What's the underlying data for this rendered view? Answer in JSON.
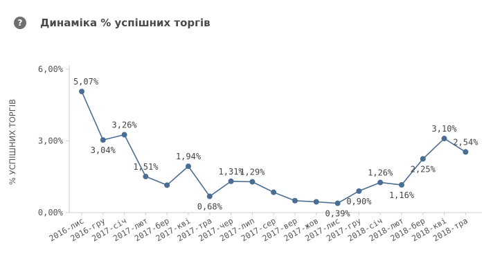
{
  "header": {
    "icon": "help-icon",
    "title": "Динаміка % успішних торгів"
  },
  "chart_data": {
    "type": "line",
    "title": "Динаміка % успішних торгів",
    "xlabel": "",
    "ylabel": "% УСПІШНИХ ТОРГІВ",
    "categories": [
      "2016-лис",
      "2016-гру",
      "2017-січ",
      "2017-лют",
      "2017-бер",
      "2017-кві",
      "2017-тра",
      "2017-чер",
      "2017-лип",
      "2017-сер",
      "2017-вер",
      "2017-жов",
      "2017-лис",
      "2017-гру",
      "2018-січ",
      "2018-лют",
      "2018-бер",
      "2018-кві",
      "2018-тра"
    ],
    "values": [
      5.07,
      3.04,
      3.26,
      1.51,
      1.15,
      1.94,
      0.68,
      1.31,
      1.29,
      0.85,
      0.5,
      0.45,
      0.39,
      0.9,
      1.26,
      1.16,
      2.25,
      3.1,
      2.54
    ],
    "data_labels": [
      "5,07%",
      "3,04%",
      "3,26%",
      "1,51%",
      "",
      "1,94%",
      "0,68%",
      "1,31%",
      "1,29%",
      "",
      "",
      "",
      "0,39%",
      "0,90%",
      "1,26%",
      "1,16%",
      "2,25%",
      "3,10%",
      "2,54%"
    ],
    "yticks": [
      "0,00%",
      "3,00%",
      "6,00%"
    ],
    "ytick_values": [
      0,
      3,
      6
    ],
    "ylim": [
      0,
      6
    ],
    "color": "#4a6d94",
    "grid": false,
    "legend": "none"
  }
}
